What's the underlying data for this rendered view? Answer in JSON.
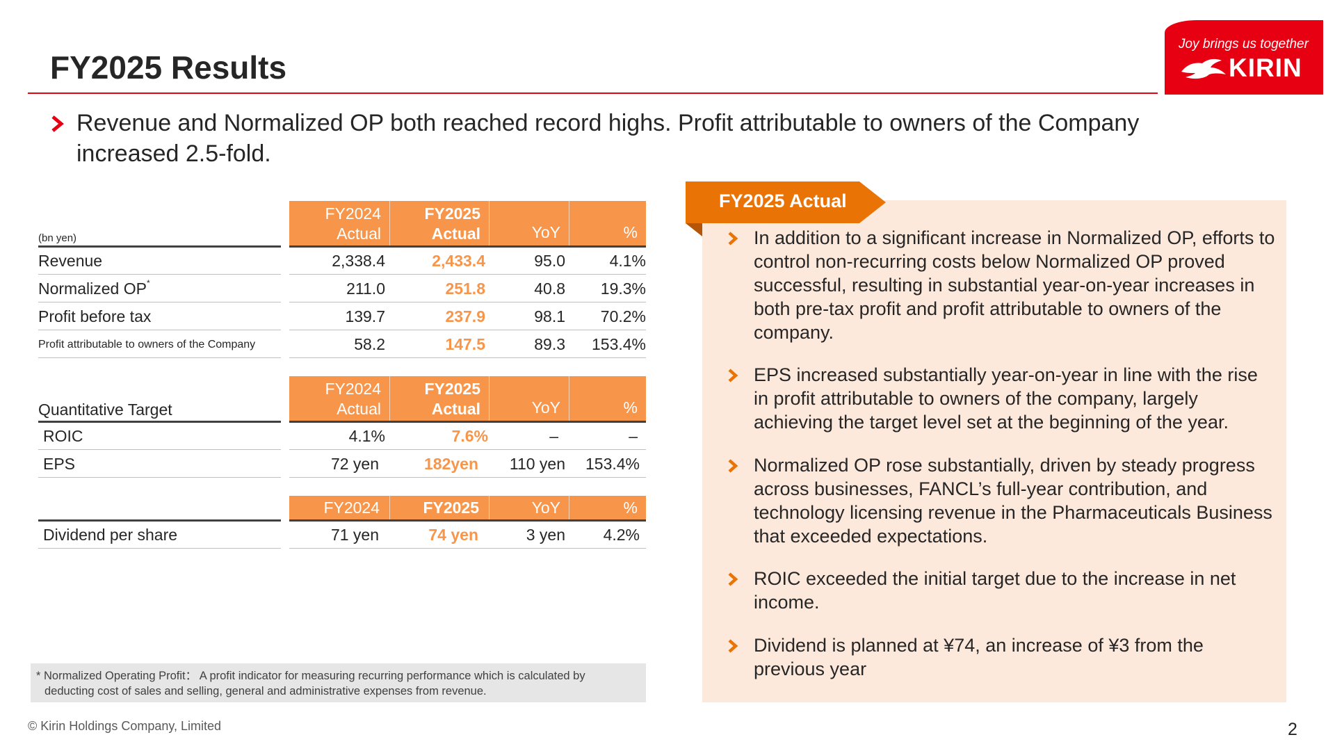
{
  "slide": {
    "title": "FY2025 Results",
    "page_number": "2",
    "copyright": "© Kirin Holdings Company, Limited"
  },
  "logo": {
    "tagline": "Joy brings us together",
    "brand": "KIRIN"
  },
  "headline": "Revenue and Normalized OP both reached record highs. Profit attributable to owners of the Company increased 2.5-fold.",
  "colors": {
    "accent_red": "#e60012",
    "accent_orange": "#f7964a",
    "panel_bg": "#fde9dc",
    "tab_orange": "#ea7306"
  },
  "table1": {
    "unit_label": "(bn yen)",
    "headers": [
      {
        "line1": "FY2024",
        "line2": "Actual"
      },
      {
        "line1": "FY2025",
        "line2": "Actual"
      },
      {
        "line1": "",
        "line2": "YoY"
      },
      {
        "line1": "",
        "line2": "%"
      }
    ],
    "rows": [
      {
        "label": "Revenue",
        "mark": "",
        "fy2024": "2,338.4",
        "fy2025": "2,433.4",
        "yoy": "95.0",
        "pct": "4.1%"
      },
      {
        "label": "Normalized OP",
        "mark": "*",
        "fy2024": "211.0",
        "fy2025": "251.8",
        "yoy": "40.8",
        "pct": "19.3%"
      },
      {
        "label": "Profit before tax",
        "mark": "",
        "fy2024": "139.7",
        "fy2025": "237.9",
        "yoy": "98.1",
        "pct": "70.2%"
      },
      {
        "label": "Profit attributable to owners of the Company",
        "mark": "",
        "fy2024": "58.2",
        "fy2025": "147.5",
        "yoy": "89.3",
        "pct": "153.4%"
      }
    ]
  },
  "table2": {
    "label": "Quantitative Target",
    "headers": [
      {
        "line1": "FY2024",
        "line2": "Actual"
      },
      {
        "line1": "FY2025",
        "line2": "Actual"
      },
      {
        "line1": "",
        "line2": "YoY"
      },
      {
        "line1": "",
        "line2": "%"
      }
    ],
    "rows": [
      {
        "label": "ROIC",
        "fy2024": "4.1%",
        "fy2025": "7.6%",
        "yoy": "–",
        "pct": "–"
      },
      {
        "label": "EPS",
        "fy2024": "72 yen",
        "fy2025": "182yen",
        "yoy": "110 yen",
        "pct": "153.4%"
      }
    ]
  },
  "table3": {
    "headers": [
      "FY2024",
      "FY2025",
      "YoY",
      "%"
    ],
    "rows": [
      {
        "label": "Dividend per share",
        "fy2024": "71 yen",
        "fy2025": "74 yen",
        "yoy": "3 yen",
        "pct": "4.2%"
      }
    ]
  },
  "footnote": {
    "line1": "* Normalized Operating Profit： A profit indicator for measuring recurring performance which is calculated by",
    "line2": "deducting cost of sales and selling, general and administrative expenses from revenue."
  },
  "panel": {
    "tab_label": "FY2025 Actual",
    "bullets": [
      "In addition to a significant increase in Normalized OP, efforts to control non-recurring costs below Normalized OP proved successful, resulting in substantial year-on-year increases in both pre-tax profit and profit attributable to owners of the company.",
      "EPS increased substantially year-on-year in line with the rise in profit attributable to owners of the company, largely achieving the target level set at the beginning of the year.",
      "Normalized OP rose substantially, driven by steady progress across businesses, FANCL’s full-year contribution, and technology licensing revenue in the Pharmaceuticals Business that exceeded expectations.",
      "ROIC exceeded the initial target due to the increase in net income.",
      "Dividend is planned at ¥74, an increase of ¥3 from the previous year"
    ]
  }
}
